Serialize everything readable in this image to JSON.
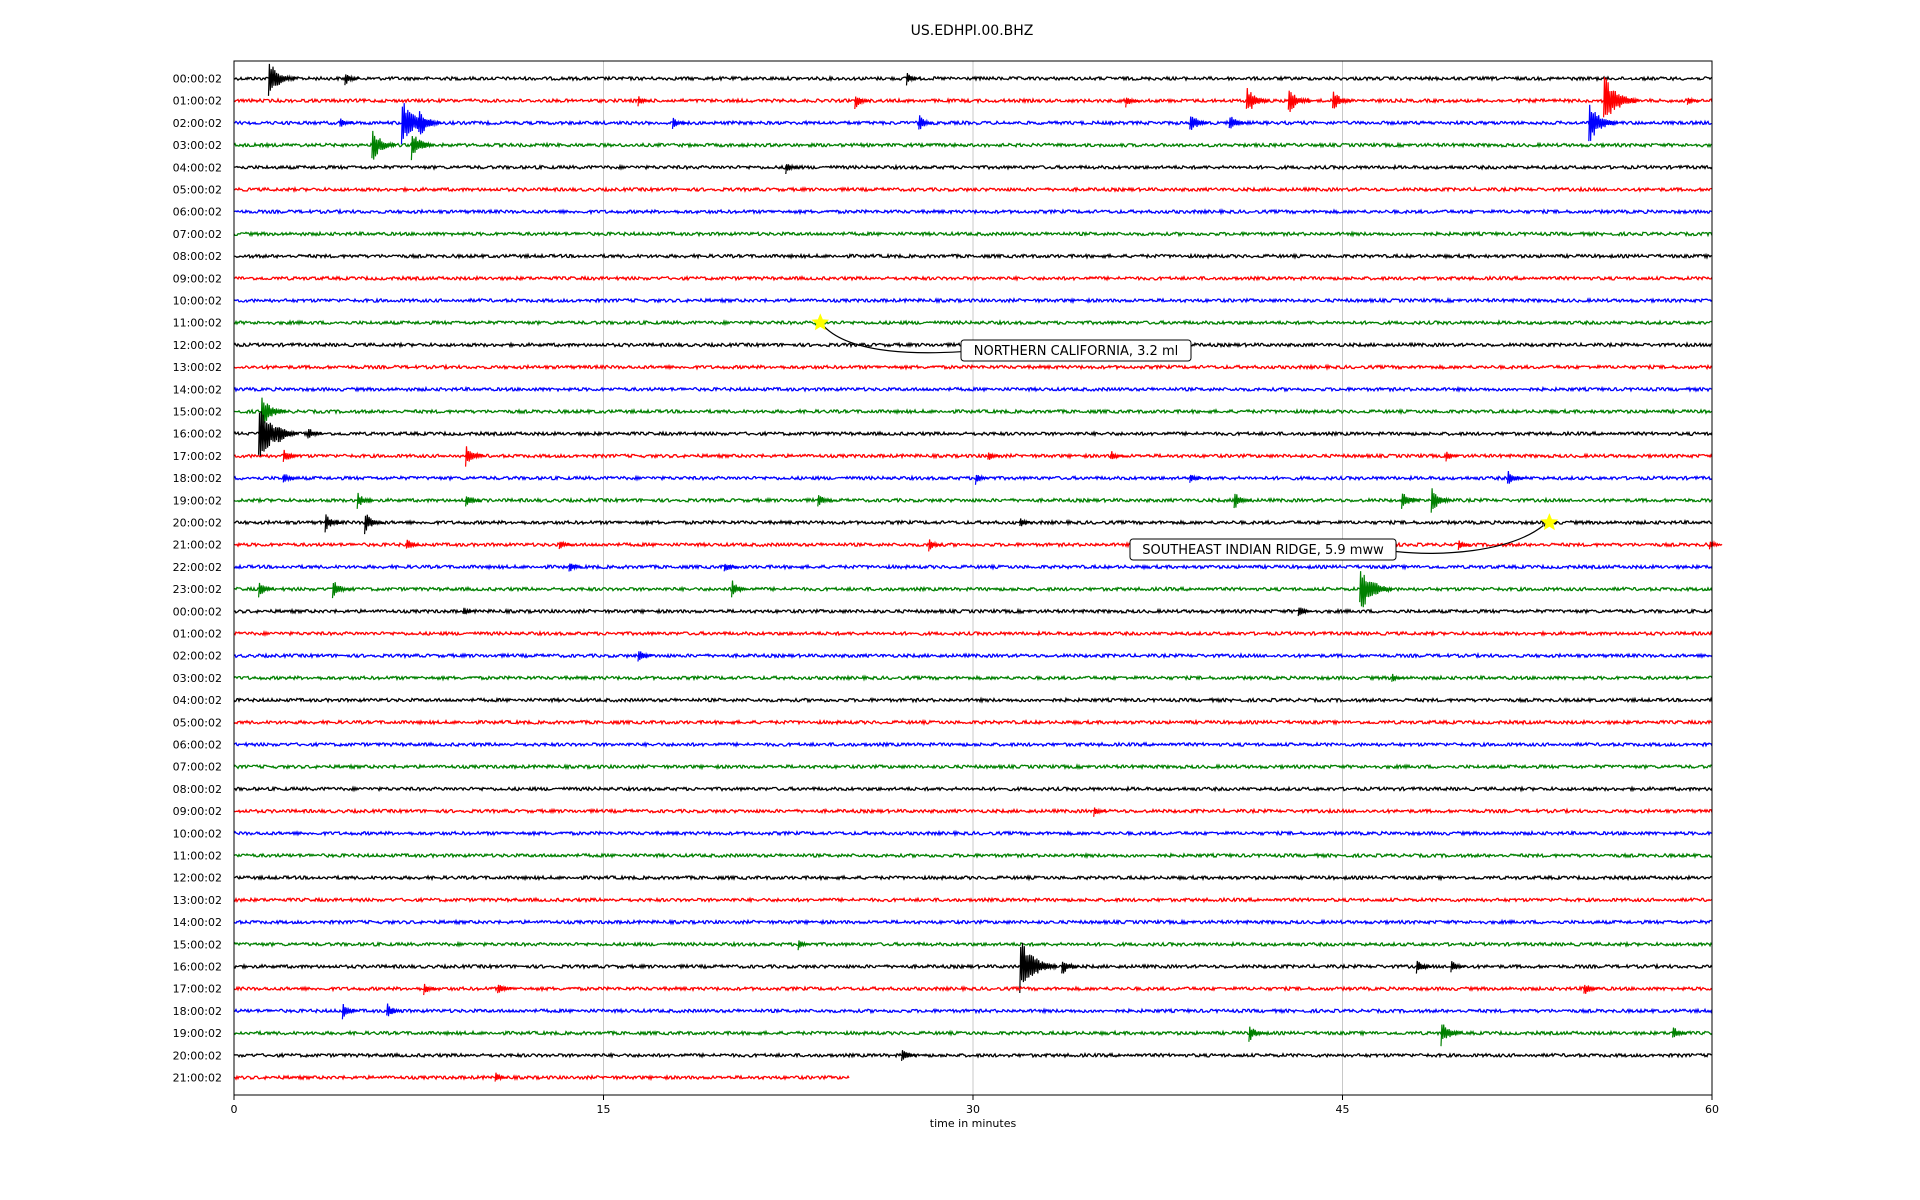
{
  "chart_data": {
    "type": "line",
    "title": "US.EDHPI.00.BHZ",
    "xlabel": "time in minutes",
    "xlim": [
      0,
      60
    ],
    "x_ticks": [
      "0",
      "15",
      "30",
      "45",
      "60"
    ],
    "grid": "vertical lines at 15-minute ticks",
    "trace_colors": [
      "#000000",
      "#ff0000",
      "#0000ff",
      "#008000"
    ],
    "row_labels": [
      "00:00:02",
      "01:00:02",
      "02:00:02",
      "03:00:02",
      "04:00:02",
      "05:00:02",
      "06:00:02",
      "07:00:02",
      "08:00:02",
      "09:00:02",
      "10:00:02",
      "11:00:02",
      "12:00:02",
      "13:00:02",
      "14:00:02",
      "15:00:02",
      "16:00:02",
      "17:00:02",
      "18:00:02",
      "19:00:02",
      "20:00:02",
      "21:00:02",
      "22:00:02",
      "23:00:02",
      "00:00:02",
      "01:00:02",
      "02:00:02",
      "03:00:02",
      "04:00:02",
      "05:00:02",
      "06:00:02",
      "07:00:02",
      "08:00:02",
      "09:00:02",
      "10:00:02",
      "11:00:02",
      "12:00:02",
      "13:00:02",
      "14:00:02",
      "15:00:02",
      "16:00:02",
      "17:00:02",
      "18:00:02",
      "19:00:02",
      "20:00:02",
      "21:00:02"
    ],
    "last_row_end_minute": 25,
    "events": [
      {
        "row": 0,
        "minute": 1.4,
        "amp": 1.0
      },
      {
        "row": 0,
        "minute": 4.5,
        "amp": 0.4
      },
      {
        "row": 0,
        "minute": 27.3,
        "amp": 0.35
      },
      {
        "row": 1,
        "minute": 16.4,
        "amp": 0.3
      },
      {
        "row": 1,
        "minute": 25.2,
        "amp": 0.45
      },
      {
        "row": 1,
        "minute": 36.2,
        "amp": 0.35
      },
      {
        "row": 1,
        "minute": 41.1,
        "amp": 0.8
      },
      {
        "row": 1,
        "minute": 42.8,
        "amp": 0.75
      },
      {
        "row": 1,
        "minute": 44.6,
        "amp": 0.6
      },
      {
        "row": 1,
        "minute": 55.6,
        "amp": 1.4
      },
      {
        "row": 1,
        "minute": 59.0,
        "amp": 0.3
      },
      {
        "row": 2,
        "minute": 4.3,
        "amp": 0.35
      },
      {
        "row": 2,
        "minute": 6.8,
        "amp": 1.3
      },
      {
        "row": 2,
        "minute": 7.5,
        "amp": 0.8
      },
      {
        "row": 2,
        "minute": 17.8,
        "amp": 0.35
      },
      {
        "row": 2,
        "minute": 27.8,
        "amp": 0.45
      },
      {
        "row": 2,
        "minute": 38.8,
        "amp": 0.6
      },
      {
        "row": 2,
        "minute": 40.4,
        "amp": 0.5
      },
      {
        "row": 2,
        "minute": 55.0,
        "amp": 1.1
      },
      {
        "row": 3,
        "minute": 5.6,
        "amp": 0.9
      },
      {
        "row": 3,
        "minute": 7.2,
        "amp": 0.8
      },
      {
        "row": 4,
        "minute": 22.4,
        "amp": 0.35
      },
      {
        "row": 11,
        "minute": 23.6,
        "amp": 0.25
      },
      {
        "row": 15,
        "minute": 1.1,
        "amp": 0.9
      },
      {
        "row": 16,
        "minute": 1.0,
        "amp": 1.5
      },
      {
        "row": 16,
        "minute": 1.8,
        "amp": 0.6
      },
      {
        "row": 16,
        "minute": 3.0,
        "amp": 0.4
      },
      {
        "row": 17,
        "minute": 2.0,
        "amp": 0.45
      },
      {
        "row": 17,
        "minute": 9.4,
        "amp": 0.6
      },
      {
        "row": 17,
        "minute": 30.6,
        "amp": 0.3
      },
      {
        "row": 17,
        "minute": 35.6,
        "amp": 0.3
      },
      {
        "row": 17,
        "minute": 49.2,
        "amp": 0.3
      },
      {
        "row": 18,
        "minute": 2.0,
        "amp": 0.35
      },
      {
        "row": 18,
        "minute": 30.1,
        "amp": 0.35
      },
      {
        "row": 18,
        "minute": 38.8,
        "amp": 0.3
      },
      {
        "row": 18,
        "minute": 51.7,
        "amp": 0.5
      },
      {
        "row": 19,
        "minute": 5.0,
        "amp": 0.45
      },
      {
        "row": 19,
        "minute": 9.4,
        "amp": 0.45
      },
      {
        "row": 19,
        "minute": 23.7,
        "amp": 0.4
      },
      {
        "row": 19,
        "minute": 40.6,
        "amp": 0.5
      },
      {
        "row": 19,
        "minute": 47.4,
        "amp": 0.55
      },
      {
        "row": 19,
        "minute": 48.6,
        "amp": 0.7
      },
      {
        "row": 20,
        "minute": 3.7,
        "amp": 0.5
      },
      {
        "row": 20,
        "minute": 5.3,
        "amp": 0.6
      },
      {
        "row": 20,
        "minute": 31.9,
        "amp": 0.3
      },
      {
        "row": 20,
        "minute": 53.2,
        "amp": 0.3
      },
      {
        "row": 21,
        "minute": 7.0,
        "amp": 0.35
      },
      {
        "row": 21,
        "minute": 13.2,
        "amp": 0.3
      },
      {
        "row": 21,
        "minute": 28.2,
        "amp": 0.35
      },
      {
        "row": 21,
        "minute": 49.7,
        "amp": 0.3
      },
      {
        "row": 21,
        "minute": 59.9,
        "amp": 0.3
      },
      {
        "row": 22,
        "minute": 13.6,
        "amp": 0.35
      },
      {
        "row": 22,
        "minute": 19.9,
        "amp": 0.35
      },
      {
        "row": 23,
        "minute": 1.0,
        "amp": 0.45
      },
      {
        "row": 23,
        "minute": 4.0,
        "amp": 0.55
      },
      {
        "row": 23,
        "minute": 20.2,
        "amp": 0.5
      },
      {
        "row": 23,
        "minute": 45.7,
        "amp": 1.3
      },
      {
        "row": 24,
        "minute": 9.3,
        "amp": 0.25
      },
      {
        "row": 24,
        "minute": 43.2,
        "amp": 0.35
      },
      {
        "row": 26,
        "minute": 16.4,
        "amp": 0.4
      },
      {
        "row": 27,
        "minute": 47.0,
        "amp": 0.25
      },
      {
        "row": 33,
        "minute": 34.9,
        "amp": 0.3
      },
      {
        "row": 39,
        "minute": 22.9,
        "amp": 0.3
      },
      {
        "row": 40,
        "minute": 31.9,
        "amp": 1.5
      },
      {
        "row": 40,
        "minute": 33.6,
        "amp": 0.5
      },
      {
        "row": 40,
        "minute": 48.0,
        "amp": 0.45
      },
      {
        "row": 40,
        "minute": 49.4,
        "amp": 0.4
      },
      {
        "row": 41,
        "minute": 7.7,
        "amp": 0.35
      },
      {
        "row": 41,
        "minute": 10.7,
        "amp": 0.4
      },
      {
        "row": 41,
        "minute": 54.8,
        "amp": 0.4
      },
      {
        "row": 42,
        "minute": 4.4,
        "amp": 0.45
      },
      {
        "row": 42,
        "minute": 6.2,
        "amp": 0.45
      },
      {
        "row": 43,
        "minute": 41.2,
        "amp": 0.5
      },
      {
        "row": 43,
        "minute": 49.0,
        "amp": 0.7
      },
      {
        "row": 43,
        "minute": 58.4,
        "amp": 0.4
      },
      {
        "row": 44,
        "minute": 27.1,
        "amp": 0.4
      },
      {
        "row": 45,
        "minute": 10.6,
        "amp": 0.3
      }
    ],
    "annotations": [
      {
        "text": "NORTHERN CALIFORNIA, 3.2 ml",
        "row": 11,
        "minute": 23.8,
        "marker": "star",
        "marker_color": "#ffff00"
      },
      {
        "text": "SOUTHEAST INDIAN RIDGE, 5.9 mww",
        "row": 20,
        "minute": 53.4,
        "marker": "star",
        "marker_color": "#ffff00"
      }
    ]
  }
}
